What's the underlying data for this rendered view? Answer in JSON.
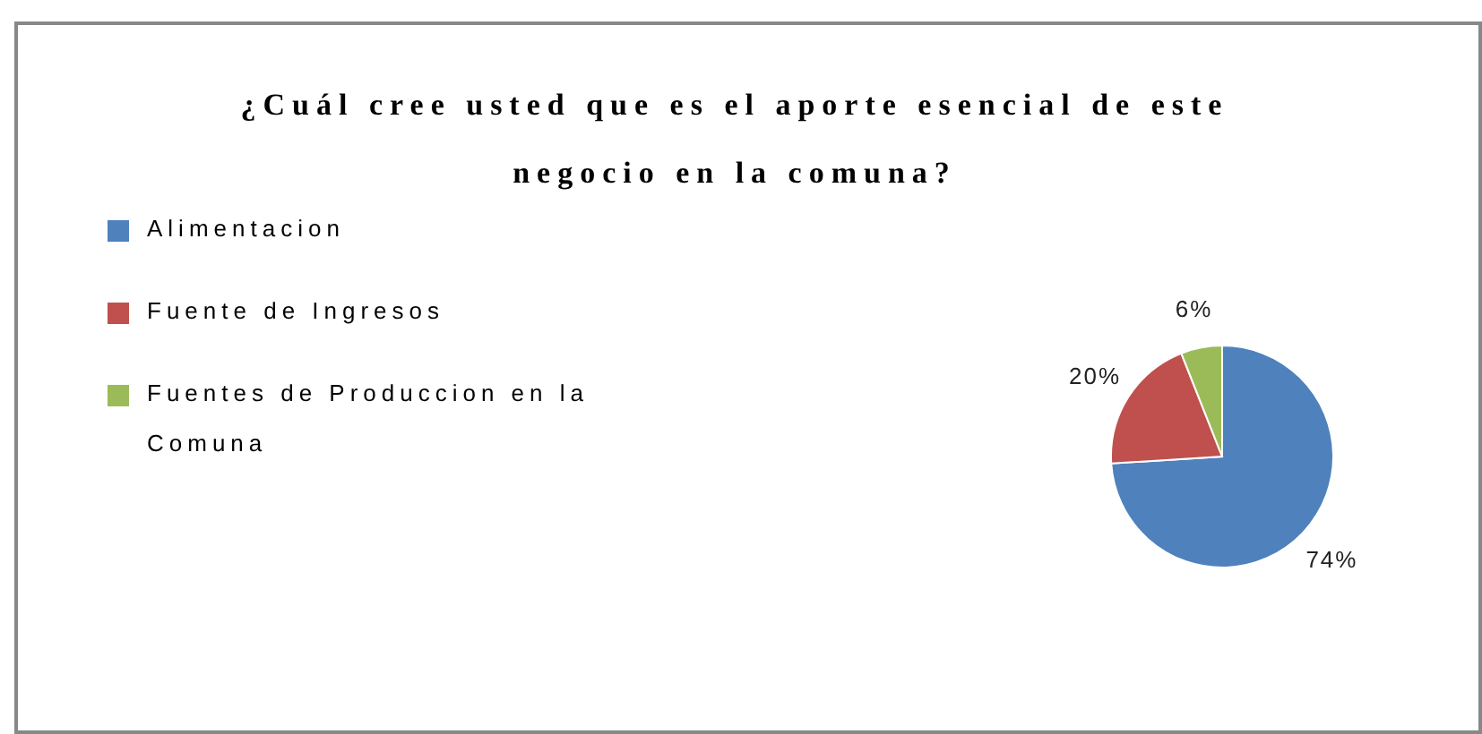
{
  "chart_data": {
    "type": "pie",
    "title": "¿Cuál cree usted que es el aporte esencial de este negocio en la comuna?",
    "categories": [
      "Alimentacion",
      "Fuente de Ingresos",
      "Fuentes de Produccion en la Comuna"
    ],
    "values": [
      74,
      20,
      6
    ],
    "colors": [
      "#4f81bd",
      "#c0504d",
      "#9bbb59"
    ],
    "value_labels": [
      "74%",
      "20%",
      "6%"
    ],
    "legend": "left"
  }
}
